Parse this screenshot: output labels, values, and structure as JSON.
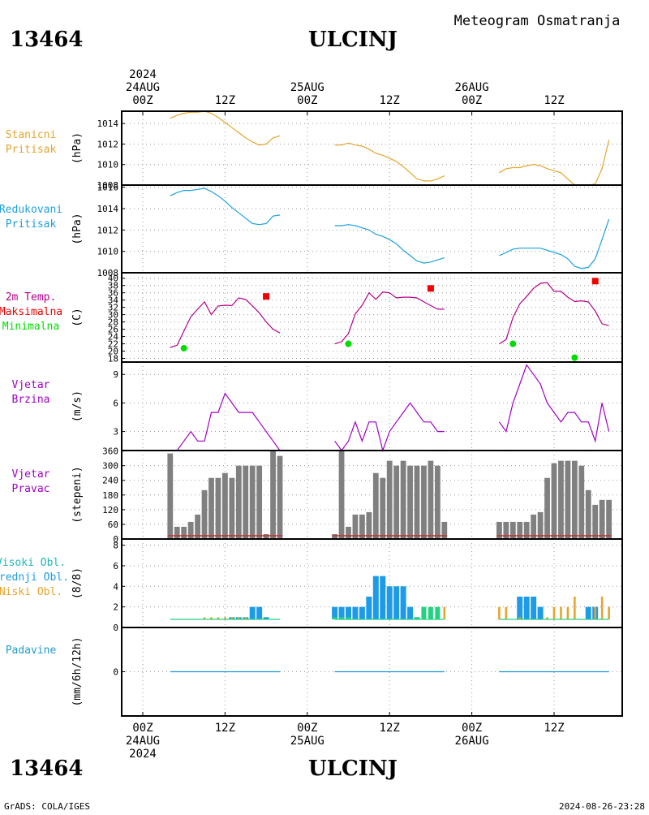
{
  "header": {
    "station_id": "13464",
    "station_name": "ULCINJ",
    "title": "Meteogram Osmatranja"
  },
  "footer": {
    "station_id": "13464",
    "station_name": "ULCINJ",
    "credit": "GrADS: COLA/IGES",
    "timestamp": "2024-08-26-23:28"
  },
  "time_axis": {
    "top": [
      {
        "x": 0,
        "lines": [
          "2024",
          "24AUG",
          "00Z"
        ]
      },
      {
        "x": 12,
        "lines": [
          "12Z"
        ]
      },
      {
        "x": 24,
        "lines": [
          "25AUG",
          "00Z"
        ]
      },
      {
        "x": 36,
        "lines": [
          "12Z"
        ]
      },
      {
        "x": 48,
        "lines": [
          "26AUG",
          "00Z"
        ]
      },
      {
        "x": 60,
        "lines": [
          "12Z"
        ]
      }
    ],
    "bottom": [
      {
        "x": 0,
        "lines": [
          "00Z",
          "24AUG",
          "2024"
        ]
      },
      {
        "x": 12,
        "lines": [
          "12Z"
        ]
      },
      {
        "x": 24,
        "lines": [
          "00Z",
          "25AUG"
        ]
      },
      {
        "x": 36,
        "lines": [
          "12Z"
        ]
      },
      {
        "x": 48,
        "lines": [
          "00Z",
          "26AUG"
        ]
      },
      {
        "x": 60,
        "lines": [
          "12Z"
        ]
      }
    ]
  },
  "colors": {
    "stanicni": "#e6a42e",
    "redukovani": "#1ea0dc",
    "temp": "#b4008c",
    "max": "#f00000",
    "min": "#00dc00",
    "wind": "#a000c8",
    "dir_bar": "#808080",
    "dir_base": "#c03030",
    "visoki": "#22b4b4",
    "srednji": "#1e9be6",
    "niski": "#e6a42e",
    "cloud_low": "#22d282",
    "precip": "#1e9bd2",
    "grid": "#9a9a9a"
  },
  "chart_data": [
    {
      "type": "line",
      "labels": [
        "Stanicni",
        "Pritisak"
      ],
      "ylabel": "(hPa)",
      "ylim": [
        1008,
        1015.2
      ],
      "yticks": [
        1008,
        1010,
        1012,
        1014
      ],
      "series": [
        {
          "x": [
            4,
            5,
            6,
            7,
            8,
            9,
            10,
            11,
            12,
            13,
            14,
            15,
            16,
            17,
            18,
            19,
            20
          ],
          "y": [
            1014.5,
            1014.8,
            1015.0,
            1015.1,
            1015.1,
            1015.2,
            1015.0,
            1014.6,
            1014.1,
            1013.6,
            1013.1,
            1012.6,
            1012.2,
            1011.9,
            1012.0,
            1012.6,
            1012.8
          ]
        },
        {
          "x": [
            28,
            29,
            30,
            31,
            32,
            33,
            34,
            35,
            36,
            37,
            38,
            39,
            40,
            41,
            42,
            43,
            44
          ],
          "y": [
            1011.9,
            1011.9,
            1012.1,
            1011.9,
            1011.8,
            1011.5,
            1011.1,
            1010.9,
            1010.6,
            1010.3,
            1009.8,
            1009.2,
            1008.6,
            1008.4,
            1008.4,
            1008.6,
            1008.9
          ]
        },
        {
          "x": [
            52,
            53,
            54,
            55,
            56,
            57,
            58,
            59,
            60,
            61,
            62,
            63,
            64,
            65,
            66,
            67,
            68
          ],
          "y": [
            1009.2,
            1009.6,
            1009.7,
            1009.7,
            1009.9,
            1010.0,
            1009.9,
            1009.6,
            1009.4,
            1009.2,
            1008.6,
            1008.0,
            1008.0,
            1008.0,
            1008.1,
            1009.6,
            1012.4
          ]
        }
      ]
    },
    {
      "type": "line",
      "labels": [
        "Redukovani",
        "Pritisak"
      ],
      "ylabel": "(hPa)",
      "ylim": [
        1008,
        1016.2
      ],
      "yticks": [
        1008,
        1010,
        1012,
        1014,
        1016
      ],
      "series": [
        {
          "x": [
            4,
            5,
            6,
            7,
            8,
            9,
            10,
            11,
            12,
            13,
            14,
            15,
            16,
            17,
            18,
            19,
            20
          ],
          "y": [
            1015.2,
            1015.5,
            1015.7,
            1015.7,
            1015.8,
            1015.9,
            1015.6,
            1015.2,
            1014.7,
            1014.1,
            1013.6,
            1013.1,
            1012.6,
            1012.5,
            1012.6,
            1013.3,
            1013.4
          ]
        },
        {
          "x": [
            28,
            29,
            30,
            31,
            32,
            33,
            34,
            35,
            36,
            37,
            38,
            39,
            40,
            41,
            42,
            43,
            44
          ],
          "y": [
            1012.4,
            1012.4,
            1012.5,
            1012.4,
            1012.2,
            1012.0,
            1011.6,
            1011.4,
            1011.1,
            1010.7,
            1010.1,
            1009.6,
            1009.1,
            1008.9,
            1009.0,
            1009.2,
            1009.4
          ]
        },
        {
          "x": [
            52,
            53,
            54,
            55,
            56,
            57,
            58,
            59,
            60,
            61,
            62,
            63,
            64,
            65,
            66,
            67,
            68
          ],
          "y": [
            1009.6,
            1009.9,
            1010.2,
            1010.3,
            1010.3,
            1010.3,
            1010.3,
            1010.1,
            1009.9,
            1009.7,
            1009.3,
            1008.6,
            1008.4,
            1008.5,
            1009.3,
            1011.1,
            1013.0
          ]
        }
      ]
    },
    {
      "type": "line",
      "labels": [
        "2m Temp.",
        "Maksimalna",
        "Minimalna"
      ],
      "ylabel": "(C)",
      "ylim": [
        17,
        41.5
      ],
      "yticks": [
        18,
        20,
        22,
        24,
        26,
        28,
        30,
        32,
        34,
        36,
        38,
        40
      ],
      "series": [
        {
          "x": [
            4,
            5,
            6,
            7,
            8,
            9,
            10,
            11,
            12,
            13,
            14,
            15,
            16,
            17,
            18,
            19,
            20
          ],
          "y": [
            21.0,
            21.6,
            25.5,
            29.4,
            31.5,
            33.5,
            30.0,
            32.4,
            32.6,
            32.5,
            34.6,
            34.2,
            32.4,
            30.5,
            28.0,
            26.0,
            25.0
          ]
        },
        {
          "x": [
            28,
            29,
            30,
            31,
            32,
            33,
            34,
            35,
            36,
            37,
            38,
            39,
            40,
            41,
            42,
            43,
            44
          ],
          "y": [
            22.0,
            22.6,
            24.8,
            30.2,
            32.6,
            36.0,
            34.2,
            36.2,
            36.0,
            34.6,
            34.8,
            34.8,
            34.6,
            33.5,
            32.5,
            31.5,
            31.5
          ]
        },
        {
          "x": [
            52,
            53,
            54,
            55,
            56,
            57,
            58,
            59,
            60,
            61,
            62,
            63,
            64,
            65,
            66,
            67,
            68
          ],
          "y": [
            22.0,
            23.2,
            29.2,
            33.0,
            35.0,
            37.2,
            38.6,
            38.8,
            36.4,
            36.4,
            34.8,
            33.6,
            33.8,
            33.5,
            31.0,
            27.5,
            27.0
          ]
        }
      ],
      "max_points": [
        {
          "x": 18,
          "y": 35.0
        },
        {
          "x": 42,
          "y": 37.2
        },
        {
          "x": 66,
          "y": 39.2
        }
      ],
      "min_points": [
        {
          "x": 6,
          "y": 20.8
        },
        {
          "x": 30,
          "y": 22.0
        },
        {
          "x": 54,
          "y": 22.0
        },
        {
          "x": 63,
          "y": 18.2
        }
      ]
    },
    {
      "type": "line",
      "labels": [
        "Vjetar",
        "Brzina"
      ],
      "ylabel": "(m/s)",
      "ylim": [
        1,
        10.3
      ],
      "yticks": [
        3,
        6,
        9
      ],
      "series": [
        {
          "x": [
            4,
            5,
            6,
            7,
            8,
            9,
            10,
            11,
            12,
            13,
            14,
            15,
            16,
            17,
            18,
            19,
            20
          ],
          "y": [
            1,
            1,
            2,
            3,
            2,
            2,
            5,
            5,
            7,
            6,
            5,
            5,
            5,
            4,
            3,
            2,
            1
          ]
        },
        {
          "x": [
            28,
            29,
            30,
            31,
            32,
            33,
            34,
            35,
            36,
            37,
            38,
            39,
            40,
            41,
            42,
            43,
            44
          ],
          "y": [
            2,
            1,
            2,
            4,
            2,
            4,
            4,
            1,
            3,
            4,
            5,
            6,
            5,
            4,
            4,
            3,
            3
          ]
        },
        {
          "x": [
            52,
            53,
            54,
            55,
            56,
            57,
            58,
            59,
            60,
            61,
            62,
            63,
            64,
            65,
            66,
            67,
            68
          ],
          "y": [
            4,
            3,
            6,
            8,
            10,
            9,
            8,
            6,
            5,
            4,
            5,
            5,
            4,
            4,
            2,
            6,
            3
          ]
        }
      ]
    },
    {
      "type": "bar",
      "labels": [
        "Vjetar",
        "Pravac"
      ],
      "ylabel": "(stepeni)",
      "ylim": [
        0,
        362
      ],
      "yticks": [
        0,
        60,
        120,
        180,
        240,
        300,
        360
      ],
      "x": [
        4,
        5,
        6,
        7,
        8,
        9,
        10,
        11,
        12,
        13,
        14,
        15,
        16,
        17,
        18,
        19,
        20,
        28,
        29,
        30,
        31,
        32,
        33,
        34,
        35,
        36,
        37,
        38,
        39,
        40,
        41,
        42,
        43,
        44,
        52,
        53,
        54,
        55,
        56,
        57,
        58,
        59,
        60,
        61,
        62,
        63,
        64,
        65,
        66,
        67,
        68
      ],
      "values": [
        350,
        50,
        50,
        70,
        100,
        200,
        250,
        250,
        270,
        250,
        300,
        300,
        300,
        300,
        20,
        360,
        340,
        20,
        360,
        50,
        100,
        100,
        110,
        270,
        250,
        320,
        300,
        320,
        300,
        300,
        300,
        320,
        300,
        70,
        70,
        70,
        70,
        70,
        70,
        100,
        110,
        250,
        310,
        320,
        320,
        320,
        300,
        200,
        140,
        160,
        160
      ]
    },
    {
      "type": "bar",
      "labels": [
        "Visoki Obl.",
        "Srednji Obl.",
        "Niski Obl."
      ],
      "ylabel": "(8/8)",
      "ylim": [
        0,
        8.6
      ],
      "yticks": [
        0,
        2,
        4,
        6,
        8
      ],
      "x": [
        4,
        5,
        6,
        7,
        8,
        9,
        10,
        11,
        12,
        13,
        14,
        15,
        16,
        17,
        18,
        19,
        20,
        28,
        29,
        30,
        31,
        32,
        33,
        34,
        35,
        36,
        37,
        38,
        39,
        40,
        41,
        42,
        43,
        44,
        52,
        53,
        54,
        55,
        56,
        57,
        58,
        59,
        60,
        61,
        62,
        63,
        64,
        65,
        66,
        67,
        68
      ],
      "series": [
        {
          "name": "Srednji Obl.",
          "values": [
            0,
            0,
            0,
            0,
            0,
            0,
            0,
            0,
            0,
            1,
            1,
            1,
            2,
            2,
            1,
            0,
            0,
            2,
            2,
            2,
            2,
            2,
            3,
            5,
            5,
            4,
            4,
            4,
            2,
            1,
            0,
            0,
            0,
            0,
            0,
            0,
            0,
            3,
            3,
            3,
            2,
            0,
            0,
            0,
            0,
            0,
            0,
            2,
            2,
            0,
            0
          ]
        },
        {
          "name": "Visoki Obl.",
          "values": [
            0,
            0,
            0,
            0,
            0,
            0,
            0,
            0,
            0,
            0,
            0,
            0,
            0,
            0,
            0,
            0,
            0,
            1,
            1,
            1,
            0,
            0,
            0,
            0,
            0,
            0,
            0,
            0,
            0,
            1,
            2,
            2,
            2,
            0,
            0,
            0,
            0,
            0,
            0,
            0,
            0,
            0,
            0,
            0,
            0,
            0,
            0,
            0,
            0,
            0,
            0
          ]
        },
        {
          "name": "Niski Obl.",
          "values": [
            0,
            0,
            0,
            0,
            0,
            1,
            1,
            1,
            1,
            1,
            1,
            1,
            0,
            0,
            0,
            0,
            0,
            0,
            0,
            0,
            0,
            0,
            0,
            0,
            0,
            0,
            0,
            0,
            0,
            0,
            0,
            0,
            0,
            2,
            2,
            2,
            0,
            1,
            0,
            0,
            0,
            1,
            2,
            2,
            2,
            3,
            0,
            0,
            2,
            3,
            2
          ]
        }
      ]
    },
    {
      "type": "line",
      "labels": [
        "Padavine"
      ],
      "ylabel": "(mm/6h/12h)",
      "ylim": [
        -1,
        1
      ],
      "yticks": [
        0
      ],
      "series": [
        {
          "x": [
            4,
            20
          ],
          "y": [
            0,
            0
          ]
        },
        {
          "x": [
            28,
            44
          ],
          "y": [
            0,
            0
          ]
        },
        {
          "x": [
            52,
            68
          ],
          "y": [
            0,
            0
          ]
        }
      ]
    }
  ]
}
